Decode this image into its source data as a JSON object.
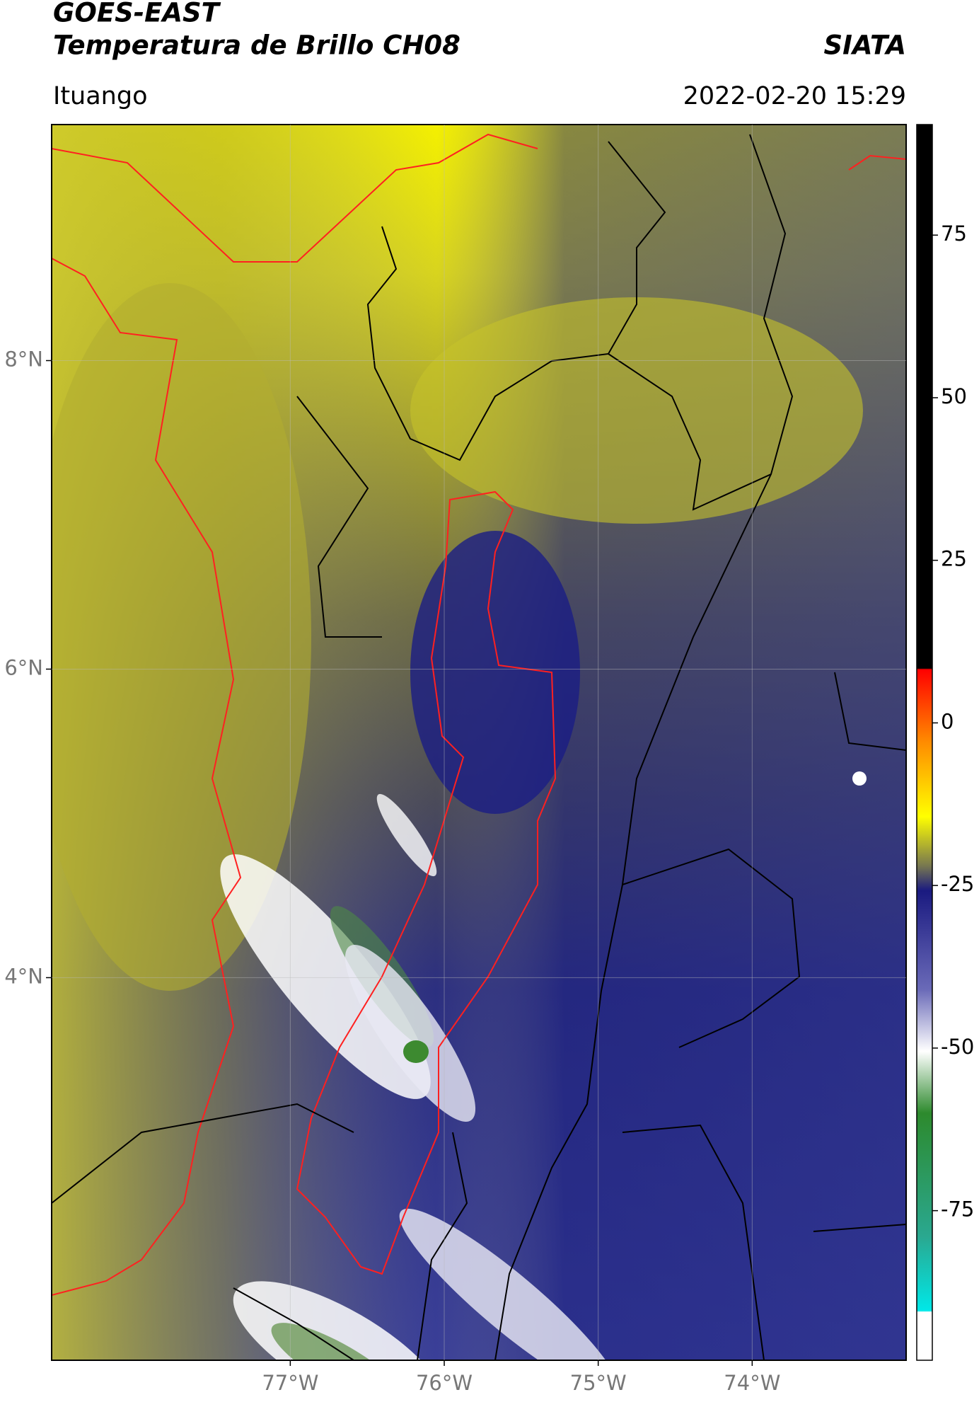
{
  "chart_data": {
    "type": "map",
    "title": "GOES-EAST",
    "subtitle": "Temperatura de Brillo CH08",
    "source": "SIATA",
    "location": "Ituango",
    "datetime": "2022-02-20 15:29",
    "xlim": [
      -78.55,
      -73
    ],
    "ylim": [
      1.52,
      9.53
    ],
    "xticks": [
      {
        "value": -77,
        "label": "77°W"
      },
      {
        "value": -76,
        "label": "76°W"
      },
      {
        "value": -75,
        "label": "75°W"
      },
      {
        "value": -74,
        "label": "74°W"
      }
    ],
    "yticks": [
      {
        "value": 4,
        "label": "4°N"
      },
      {
        "value": 6,
        "label": "6°N"
      },
      {
        "value": 8,
        "label": "8°N"
      }
    ],
    "grid": true,
    "colorbar": {
      "lim": [
        -98,
        92
      ],
      "ticks": [
        75,
        50,
        25,
        0,
        -25,
        -50,
        -75
      ]
    }
  }
}
